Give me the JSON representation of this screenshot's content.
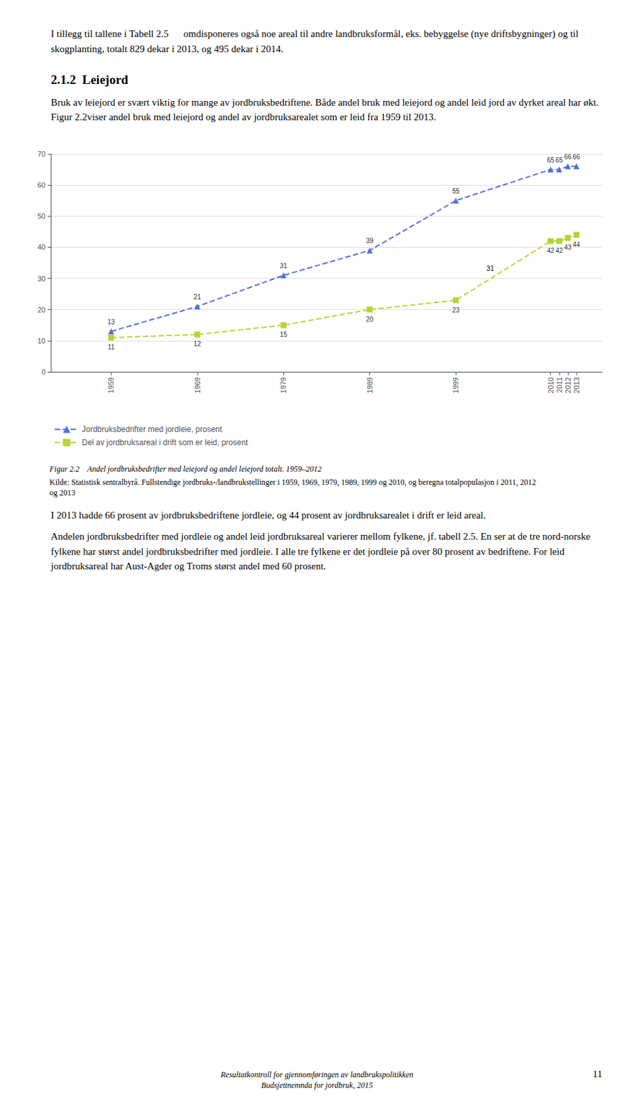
{
  "page": {
    "top_text": "I tillegg til tallene i Tabell 2.5      omdisponeres også noe areal til andre landbruksformål, eks. bebyggelse (nye driftsbygninger) og til skogplanting, totalt 829 dekar i 2013, og 495 dekar i 2014.",
    "heading": "2.1.2  Leiejord",
    "paragraphs_before": [
      "Bruk av leiejord er svært viktig for mange av jordbruksbedriftene. Både andel bruk med leiejord og andel leid jord av dyrket areal har økt. Figur 2.2viser andel bruk med leiejord og andel av jordbruksarealet som er leid fra 1959 til 2013."
    ],
    "paragraphs_after": [
      "I 2013 hadde 66 prosent av jordbruksbedriftene jordleie, og 44 prosent av jordbruksarealet i drift er leid areal.",
      "Andelen jordbruksbedrifter med jordleie og andel leid jordbruksareal varierer mellom fylkene, jf. tabell 2.5. En ser at de tre nord-norske fylkene har størst andel jordbruksbedrifter med jordleie. I alle tre fylkene er det jordleie på over 80 prosent av bedriftene. For leid jordbruksareal har Aust-Agder og Troms størst andel med 60 prosent."
    ],
    "footer": [
      "Resultatkontroll for gjennomføringen av landbrukspolitikken",
      "Budsjettnemnda for jordbruk, 2015"
    ],
    "page_number": "11"
  },
  "chart_data": {
    "type": "line",
    "title": "Figur 2.2    Andel jordbruksbedrifter med leiejord og andel leiejord totalt. 1959–2012",
    "subtitle": "Kilde: Statistisk sentralbyrå. Fullstendige jordbruks-/landbrukstellinger i 1959, 1969, 1979, 1989, 1999 og 2010, og beregna totalpopulasjon i 2011, 2012 og 2013",
    "x": [
      1959,
      1969,
      1979,
      1989,
      1999,
      2010,
      2011,
      2012,
      2013
    ],
    "series": [
      {
        "name": "Jordbruksbedrifter med jordleie, prosent",
        "values": [
          13,
          21,
          31,
          39,
          55,
          65,
          65,
          66,
          66
        ],
        "marker": "triangle",
        "line_style": "dashed"
      },
      {
        "name": "Del av jordbruksareal i drift som er leid, prosent",
        "values": [
          11,
          12,
          15,
          20,
          23,
          42,
          42,
          43,
          44
        ],
        "marker": "square",
        "line_style": "dashed"
      }
    ],
    "annotations": [
      {
        "text": "31",
        "x": 2003,
        "y": 31
      }
    ],
    "xlim": [
      1952,
      2016
    ],
    "xticks": [
      1959,
      1969,
      1979,
      1989,
      1999,
      2010,
      2011,
      2012,
      2013
    ],
    "ylim": [
      0,
      70
    ],
    "yticks": [
      0,
      10,
      20,
      30,
      40,
      50,
      60,
      70
    ],
    "grid": true,
    "data_labels": true,
    "legend": "bottom"
  }
}
